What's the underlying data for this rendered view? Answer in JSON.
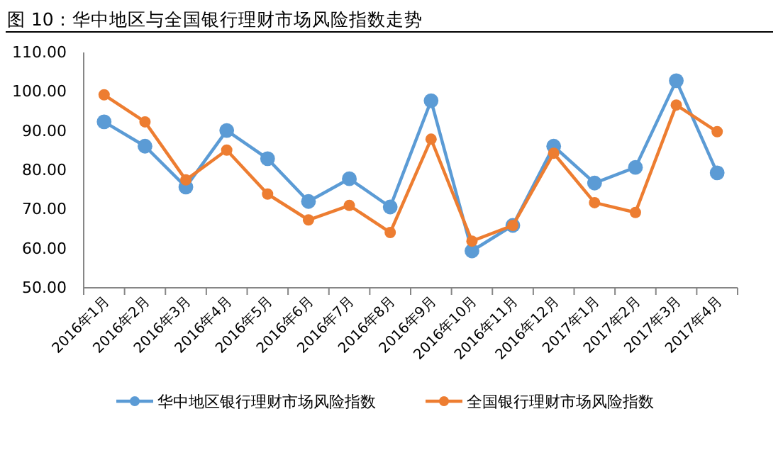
{
  "chart_data": {
    "type": "line",
    "title": "图 10：华中地区与全国银行理财市场风险指数走势",
    "categories": [
      "2016年1月",
      "2016年2月",
      "2016年3月",
      "2016年4月",
      "2016年5月",
      "2016年6月",
      "2016年7月",
      "2016年8月",
      "2016年9月",
      "2016年10月",
      "2016年11月",
      "2016年12月",
      "2017年1月",
      "2017年2月",
      "2017年3月",
      "2017年4月"
    ],
    "series": [
      {
        "name": "华中地区银行理财市场风险指数",
        "color": "#5b9bd5",
        "values": [
          92.3,
          86.1,
          75.7,
          90.1,
          82.9,
          72.0,
          77.8,
          70.6,
          97.7,
          59.4,
          65.9,
          86.1,
          76.7,
          80.7,
          102.8,
          79.3
        ]
      },
      {
        "name": "全国银行理财市场风险指数",
        "color": "#ed7d31",
        "values": [
          99.2,
          92.3,
          77.5,
          85.1,
          73.9,
          67.3,
          71.0,
          64.1,
          87.9,
          61.9,
          65.9,
          84.3,
          71.7,
          69.2,
          96.6,
          89.8
        ]
      }
    ],
    "ylim": [
      50,
      110
    ],
    "yticks": [
      {
        "value": 50,
        "label": "50.00"
      },
      {
        "value": 60,
        "label": "60.00"
      },
      {
        "value": 70,
        "label": "70.00"
      },
      {
        "value": 80,
        "label": "80.00"
      },
      {
        "value": 90,
        "label": "90.00"
      },
      {
        "value": 100,
        "label": "100.00"
      },
      {
        "value": 110,
        "label": "110.00"
      }
    ],
    "grid": false,
    "legend": "bottom",
    "marker": "circle",
    "line_style": "solid"
  }
}
